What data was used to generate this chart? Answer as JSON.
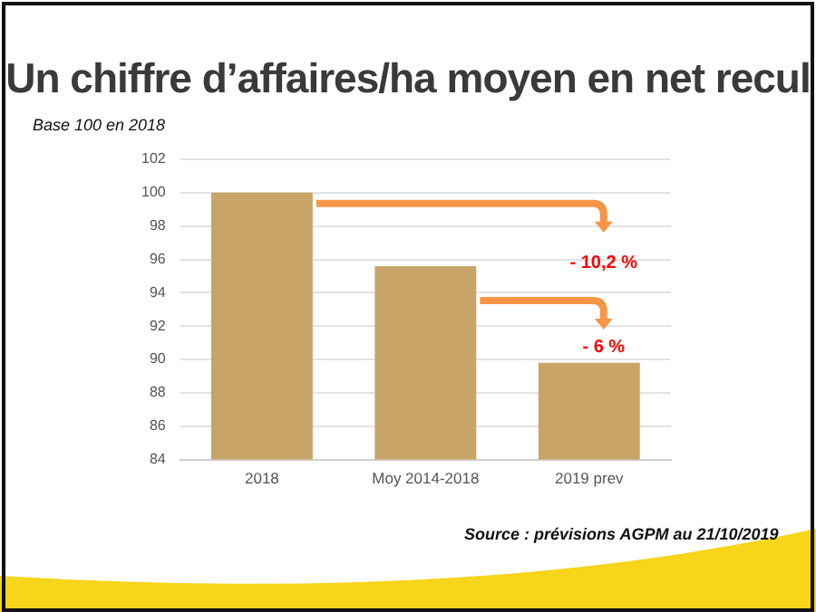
{
  "chart_data": {
    "type": "bar",
    "title": "Un chiffre d’affaires/ha moyen en net recul",
    "subtitle": "Base 100 en 2018",
    "categories": [
      "2018",
      "Moy 2014-2018",
      "2019 prev"
    ],
    "values": [
      100,
      95.6,
      89.8
    ],
    "color": "#c8a468",
    "ylim": [
      84,
      102
    ],
    "yticks": [
      84,
      86,
      88,
      90,
      92,
      94,
      96,
      98,
      100,
      102
    ],
    "grid": "y",
    "legend": false,
    "annotations": [
      "- 10,2 %",
      "- 6 %",
      "Source : prévisions AGPM au 21/10/2019"
    ]
  }
}
